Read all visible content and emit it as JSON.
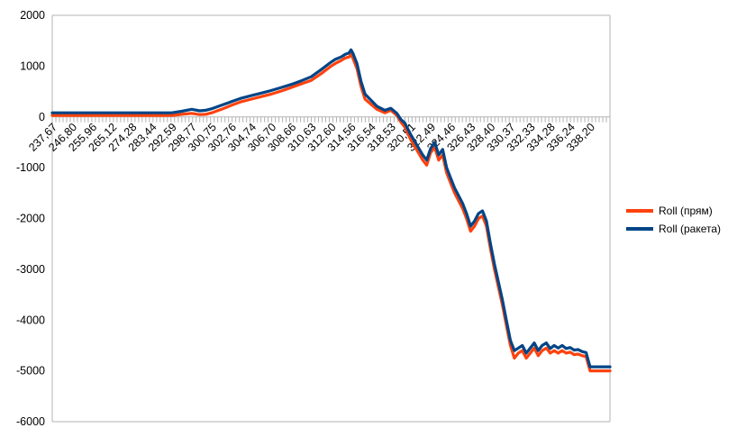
{
  "chart_data": {
    "type": "line",
    "title": "",
    "xlabel": "",
    "ylabel": "",
    "ylim": [
      -6000,
      2000
    ],
    "yticks": [
      2000,
      1000,
      0,
      -1000,
      -2000,
      -3000,
      -4000,
      -5000,
      -6000
    ],
    "ytick_labels": [
      "2000",
      "1000",
      "0",
      "-1000",
      "-2000",
      "-3000",
      "-4000",
      "-5000",
      "-6000"
    ],
    "xtick_labels": [
      "237,67",
      "246,80",
      "255,96",
      "265,12",
      "274,28",
      "283,44",
      "292,59",
      "298,77",
      "300,75",
      "302,76",
      "304,74",
      "306,70",
      "308,66",
      "310,63",
      "312,60",
      "314,56",
      "316,54",
      "318,53",
      "320,51",
      "322,49",
      "324,46",
      "326,43",
      "328,40",
      "330,37",
      "332,33",
      "334,28",
      "336,24",
      "338,20"
    ],
    "grid": false,
    "legend_position": "right",
    "series": [
      {
        "name": "Roll (прям)",
        "color": "#ff420e",
        "x": [
          0,
          1,
          2,
          3,
          4,
          5,
          6,
          6.5,
          7,
          7.4,
          7.7,
          8,
          8.5,
          9,
          9.5,
          10,
          10.5,
          11,
          11.5,
          12,
          12.5,
          13,
          13.5,
          14,
          14.2,
          14.5,
          14.7,
          14.9,
          15,
          15.1,
          15.3,
          15.5,
          15.7,
          16,
          16.3,
          16.7,
          17,
          17.3,
          17.5,
          17.7,
          18,
          18.3,
          18.6,
          18.8,
          19,
          19.2,
          19.4,
          19.6,
          19.8,
          20,
          20.2,
          20.4,
          20.6,
          20.8,
          21,
          21.2,
          21.4,
          21.6,
          21.8,
          22,
          22.2,
          22.4,
          22.6,
          22.8,
          23,
          23.2,
          23.4,
          23.6,
          23.8,
          24,
          24.2,
          24.4,
          24.6,
          24.8,
          25,
          25.2,
          25.4,
          25.6,
          25.8,
          26,
          26.2,
          26.4,
          26.6,
          26.8,
          27,
          27.3,
          27.5,
          28
        ],
        "y": [
          30,
          30,
          30,
          30,
          30,
          30,
          30,
          50,
          70,
          45,
          50,
          80,
          150,
          230,
          300,
          350,
          400,
          450,
          510,
          580,
          650,
          720,
          850,
          1000,
          1050,
          1110,
          1160,
          1180,
          1230,
          1150,
          950,
          600,
          350,
          250,
          150,
          80,
          130,
          30,
          -100,
          -200,
          -450,
          -650,
          -850,
          -950,
          -700,
          -600,
          -850,
          -750,
          -1100,
          -1300,
          -1500,
          -1650,
          -1800,
          -2000,
          -2250,
          -2150,
          -2000,
          -1950,
          -2150,
          -2600,
          -3000,
          -3350,
          -3700,
          -4100,
          -4500,
          -4750,
          -4650,
          -4600,
          -4750,
          -4650,
          -4550,
          -4700,
          -4600,
          -4550,
          -4650,
          -4600,
          -4650,
          -4600,
          -4650,
          -4630,
          -4680,
          -4670,
          -4700,
          -4720,
          -5000,
          -5000,
          -5000,
          -5000
        ]
      },
      {
        "name": "Roll (ракета)",
        "color": "#004586",
        "x": [
          0,
          1,
          2,
          3,
          4,
          5,
          6,
          6.5,
          7,
          7.4,
          7.7,
          8,
          8.5,
          9,
          9.5,
          10,
          10.5,
          11,
          11.5,
          12,
          12.5,
          13,
          13.5,
          14,
          14.2,
          14.5,
          14.7,
          14.9,
          15,
          15.1,
          15.3,
          15.5,
          15.7,
          16,
          16.3,
          16.7,
          17,
          17.3,
          17.5,
          17.7,
          18,
          18.3,
          18.6,
          18.8,
          19,
          19.2,
          19.4,
          19.6,
          19.8,
          20,
          20.2,
          20.4,
          20.6,
          20.8,
          21,
          21.2,
          21.4,
          21.6,
          21.8,
          22,
          22.2,
          22.4,
          22.6,
          22.8,
          23,
          23.2,
          23.4,
          23.6,
          23.8,
          24,
          24.2,
          24.4,
          24.6,
          24.8,
          25,
          25.2,
          25.4,
          25.6,
          25.8,
          26,
          26.2,
          26.4,
          26.6,
          26.8,
          27,
          27.3,
          27.5,
          28
        ],
        "y": [
          80,
          80,
          80,
          80,
          80,
          80,
          80,
          110,
          150,
          120,
          130,
          160,
          230,
          300,
          370,
          420,
          470,
          520,
          580,
          640,
          710,
          790,
          930,
          1080,
          1130,
          1180,
          1230,
          1260,
          1320,
          1250,
          1050,
          700,
          450,
          330,
          210,
          130,
          170,
          70,
          -50,
          -120,
          -350,
          -550,
          -750,
          -850,
          -620,
          -500,
          -750,
          -640,
          -1000,
          -1200,
          -1400,
          -1550,
          -1700,
          -1900,
          -2150,
          -2050,
          -1900,
          -1850,
          -2050,
          -2500,
          -2900,
          -3250,
          -3600,
          -4000,
          -4400,
          -4600,
          -4550,
          -4500,
          -4650,
          -4550,
          -4450,
          -4600,
          -4500,
          -4450,
          -4560,
          -4500,
          -4550,
          -4500,
          -4560,
          -4540,
          -4590,
          -4580,
          -4620,
          -4640,
          -4920,
          -4920,
          -4920,
          -4920
        ]
      }
    ]
  }
}
